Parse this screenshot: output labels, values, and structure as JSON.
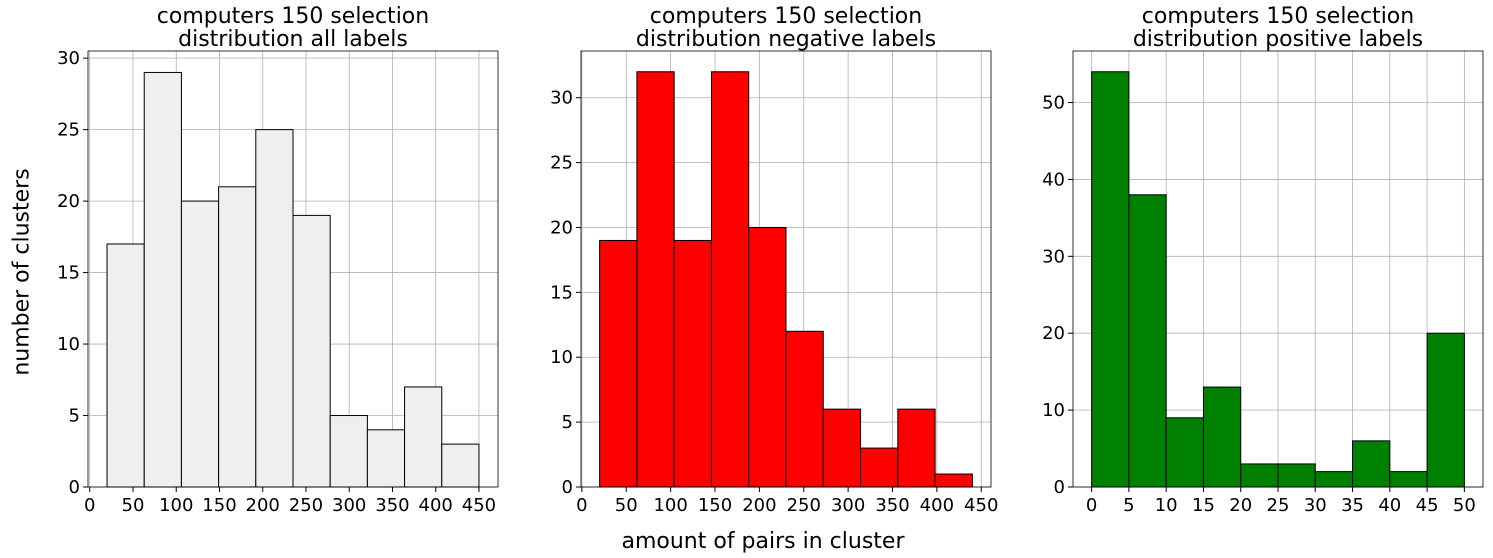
{
  "figure": {
    "ylabel": "number of clusters",
    "xlabel": "amount of pairs in cluster"
  },
  "chart_data": [
    {
      "type": "bar",
      "title": [
        "computers 150 selection",
        "distribution all labels"
      ],
      "bin_edges": [
        20,
        63,
        106,
        149,
        192,
        235,
        278,
        321,
        364,
        407,
        450
      ],
      "values": [
        17,
        29,
        20,
        21,
        25,
        19,
        5,
        4,
        7,
        3
      ],
      "xlim": [
        -2,
        472
      ],
      "ylim": [
        0,
        30.5
      ],
      "xticks": [
        0,
        50,
        100,
        150,
        200,
        250,
        300,
        350,
        400,
        450
      ],
      "yticks": [
        0,
        5,
        10,
        15,
        20,
        25,
        30
      ],
      "color": "#efefef",
      "edgecolor": "#000000",
      "grid": true
    },
    {
      "type": "bar",
      "title": [
        "computers 150 selection",
        "distribution negative labels"
      ],
      "bin_edges": [
        20,
        62,
        104,
        146,
        188,
        230,
        272,
        314,
        356,
        398,
        440
      ],
      "values": [
        19,
        32,
        19,
        32,
        20,
        12,
        6,
        3,
        6,
        1
      ],
      "xlim": [
        -1,
        461
      ],
      "ylim": [
        0,
        33.6
      ],
      "xticks": [
        0,
        50,
        100,
        150,
        200,
        250,
        300,
        350,
        400,
        450
      ],
      "yticks": [
        0,
        5,
        10,
        15,
        20,
        25,
        30
      ],
      "color": "#ff0000",
      "edgecolor": "#000000",
      "grid": true
    },
    {
      "type": "bar",
      "title": [
        "computers 150 selection",
        "distribution positive labels"
      ],
      "bin_edges": [
        0,
        5,
        10,
        15,
        20,
        25,
        30,
        35,
        40,
        45,
        50
      ],
      "values": [
        54,
        38,
        9,
        13,
        3,
        3,
        2,
        6,
        2,
        20
      ],
      "xlim": [
        -2.5,
        52.5
      ],
      "ylim": [
        0,
        56.7
      ],
      "xticks": [
        0,
        5,
        10,
        15,
        20,
        25,
        30,
        35,
        40,
        45,
        50
      ],
      "yticks": [
        0,
        10,
        20,
        30,
        40,
        50
      ],
      "color": "#008000",
      "edgecolor": "#000000",
      "grid": true
    }
  ]
}
